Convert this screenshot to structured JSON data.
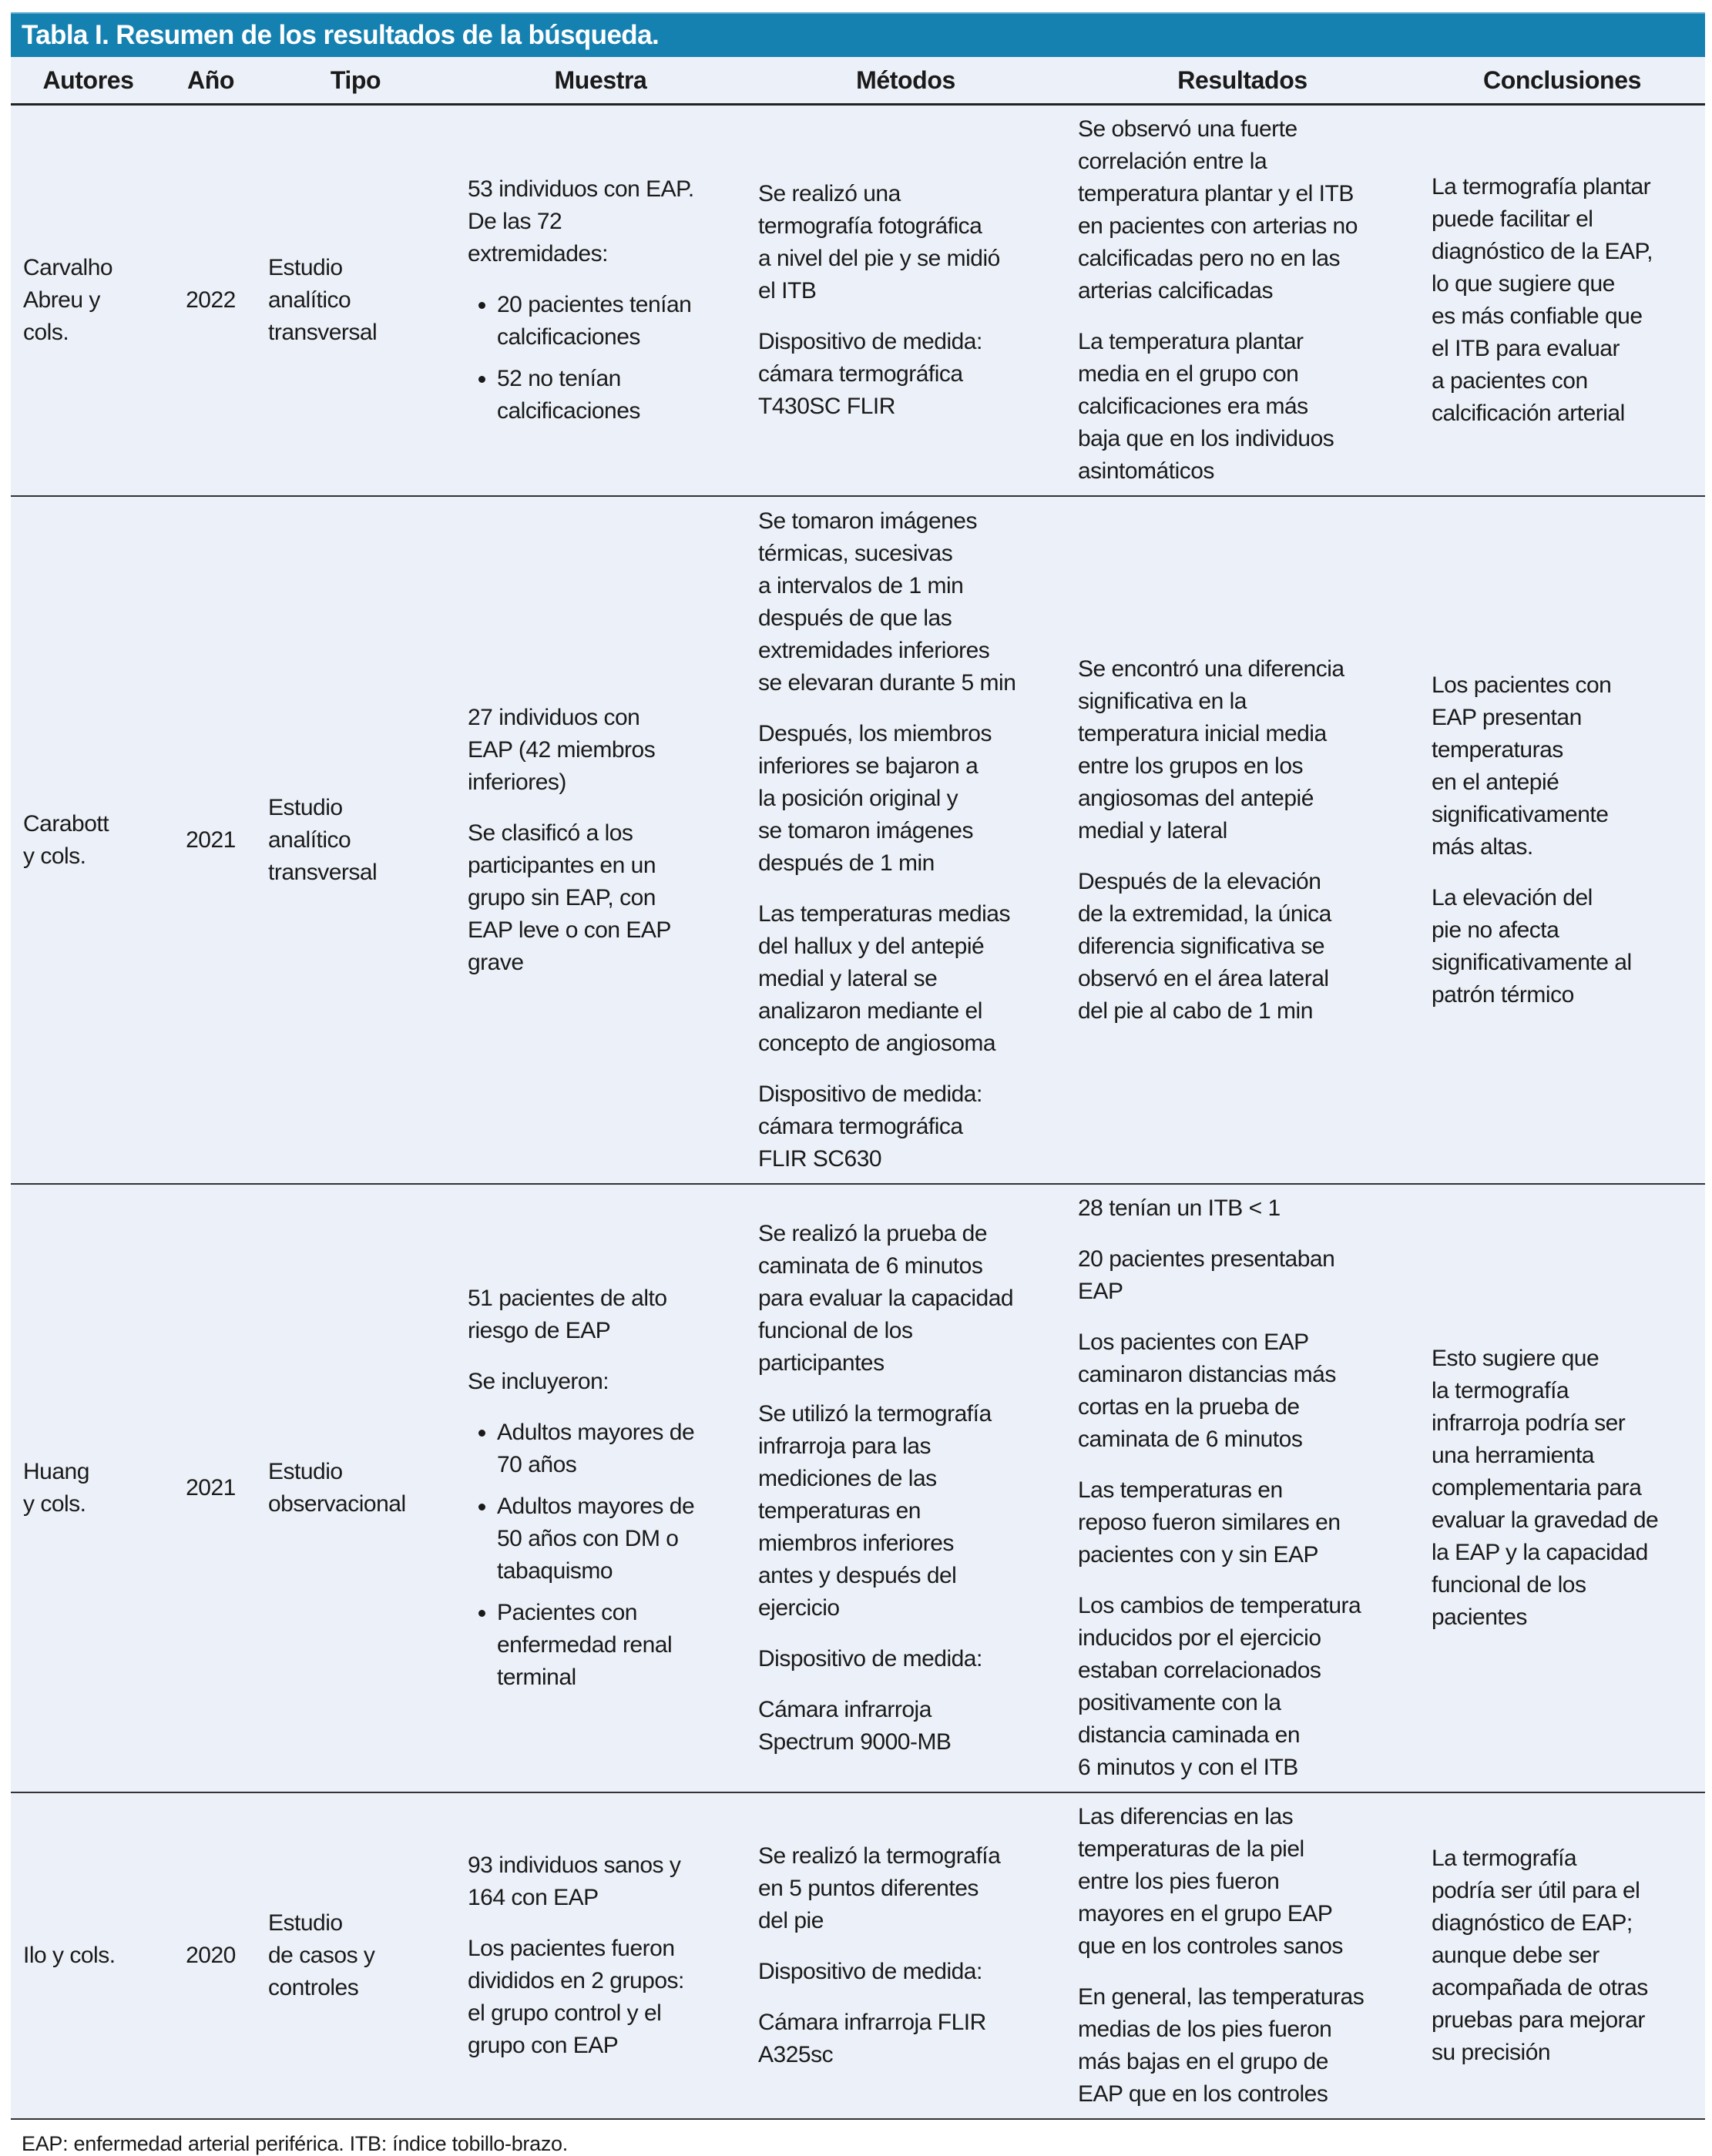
{
  "title": "Tabla I. Resumen de los resultados de la búsqueda.",
  "headers": [
    "Autores",
    "Año",
    "Tipo",
    "Muestra",
    "Métodos",
    "Resultados",
    "Conclusiones"
  ],
  "rows": [
    {
      "autores": "Carvalho\nAbreu y\ncols.",
      "anio": "2022",
      "tipo": "Estudio\nanalítico\ntransversal",
      "muestra": [
        {
          "text": "53 individuos con EAP.\nDe las 72\nextremidades:"
        },
        {
          "bullets": [
            "20 pacientes tenían\ncalcificaciones",
            "52 no tenían\ncalcificaciones"
          ]
        }
      ],
      "metodos": [
        {
          "text": "Se realizó una\ntermografía fotográfica\na nivel del pie y se midió\nel ITB"
        },
        {
          "text": "Dispositivo de medida:\ncámara termográfica\nT430SC FLIR"
        }
      ],
      "resultados": [
        {
          "text": "Se observó una fuerte\ncorrelación entre la\ntemperatura plantar y el ITB\nen pacientes con arterias no\ncalcificadas pero no en las\narterias calcificadas"
        },
        {
          "text": "La temperatura plantar\nmedia en el grupo con\ncalcificaciones era más\nbaja que en los individuos\nasintomáticos"
        }
      ],
      "conclusiones": [
        {
          "text": "La termografía plantar\npuede facilitar el\ndiagnóstico de la EAP,\nlo que sugiere que\nes más confiable que\nel ITB para evaluar\na pacientes con\ncalcificación arterial"
        }
      ]
    },
    {
      "autores": "Carabott\ny cols.",
      "anio": "2021",
      "tipo": "Estudio\nanalítico\ntransversal",
      "muestra": [
        {
          "text": "27 individuos con\nEAP (42 miembros\ninferiores)"
        },
        {
          "text": "Se clasificó a los\nparticipantes en un\ngrupo sin EAP, con\nEAP leve o con EAP\ngrave"
        }
      ],
      "metodos": [
        {
          "text": "Se tomaron imágenes\ntérmicas, sucesivas\na intervalos de 1 min\ndespués de que las\nextremidades inferiores\nse elevaran durante 5 min"
        },
        {
          "text": "Después, los miembros\ninferiores se bajaron a\nla posición original y\nse tomaron imágenes\ndespués de 1 min"
        },
        {
          "text": "Las temperaturas medias\ndel hallux y del antepié\nmedial y lateral se\nanalizaron mediante el\nconcepto de angiosoma"
        },
        {
          "text": "Dispositivo de medida:\ncámara termográfica\nFLIR SC630"
        }
      ],
      "resultados": [
        {
          "text": "Se encontró una diferencia\nsignificativa en la\ntemperatura inicial media\nentre los grupos en los\nangiosomas del antepié\nmedial y lateral"
        },
        {
          "text": "Después de la elevación\nde la extremidad, la única\ndiferencia significativa se\nobservó en el área lateral\ndel pie al cabo de 1 min"
        }
      ],
      "conclusiones": [
        {
          "text": "Los pacientes con\nEAP presentan\ntemperaturas\nen el antepié\nsignificativamente\nmás altas."
        },
        {
          "text": "La elevación del\npie no afecta\nsignificativamente al\npatrón térmico"
        }
      ]
    },
    {
      "autores": "Huang\ny cols.",
      "anio": "2021",
      "tipo": "Estudio\nobservacional",
      "muestra": [
        {
          "text": "51 pacientes de alto\nriesgo de EAP"
        },
        {
          "text": "Se incluyeron:"
        },
        {
          "bullets": [
            "Adultos mayores de\n70 años",
            "Adultos mayores de\n50 años con DM o\ntabaquismo",
            "Pacientes con\nenfermedad renal\nterminal"
          ]
        }
      ],
      "metodos": [
        {
          "text": "Se realizó la prueba de\ncaminata de 6 minutos\npara evaluar la capacidad\nfuncional de los\nparticipantes"
        },
        {
          "text": "Se utilizó la termografía\ninfrarroja para las\nmediciones de las\ntemperaturas en\nmiembros inferiores\nantes y después del\nejercicio"
        },
        {
          "text": "Dispositivo de medida:"
        },
        {
          "text": "Cámara infrarroja\nSpectrum 9000-MB"
        }
      ],
      "resultados": [
        {
          "text": "28 tenían un ITB < 1"
        },
        {
          "text": "20 pacientes presentaban\nEAP"
        },
        {
          "text": "Los pacientes con EAP\ncaminaron distancias más\ncortas en la prueba de\ncaminata de 6 minutos"
        },
        {
          "text": "Las temperaturas en\nreposo fueron similares en\npacientes con y sin EAP"
        },
        {
          "text": "Los cambios de temperatura\ninducidos por el ejercicio\nestaban correlacionados\npositivamente con la\ndistancia caminada en\n6 minutos y con el ITB"
        }
      ],
      "conclusiones": [
        {
          "text": "Esto sugiere que\nla termografía\ninfrarroja podría ser\nuna herramienta\ncomplementaria para\nevaluar la gravedad de\nla EAP y la capacidad\nfuncional de los\npacientes"
        }
      ]
    },
    {
      "autores": "Ilo y cols.",
      "anio": "2020",
      "tipo": "Estudio\nde casos y\ncontroles",
      "muestra": [
        {
          "text": "93 individuos sanos y\n164 con EAP"
        },
        {
          "text": "Los pacientes fueron\ndivididos en 2 grupos:\nel grupo control y el\ngrupo con EAP"
        }
      ],
      "metodos": [
        {
          "text": "Se realizó la termografía\nen 5 puntos diferentes\ndel pie"
        },
        {
          "text": "Dispositivo de medida:"
        },
        {
          "text": "Cámara infrarroja FLIR\nA325sc"
        }
      ],
      "resultados": [
        {
          "text": "Las diferencias en las\ntemperaturas de la piel\nentre los pies fueron\nmayores en el grupo EAP\nque en los controles sanos"
        },
        {
          "text": "En general, las temperaturas\nmedias de los pies fueron\nmás bajas en el grupo de\nEAP que en los controles"
        }
      ],
      "conclusiones": [
        {
          "text": "La termografía\npodría ser útil para el\ndiagnóstico de EAP;\naunque debe ser\nacompañada de otras\npruebas para mejorar\nsu precisión"
        }
      ]
    }
  ],
  "footnote": "EAP: enfermedad arterial periférica. ITB: índice tobillo-brazo.",
  "colors": {
    "title_band": "#1581b1",
    "table_bg": "#ecf0f8"
  }
}
